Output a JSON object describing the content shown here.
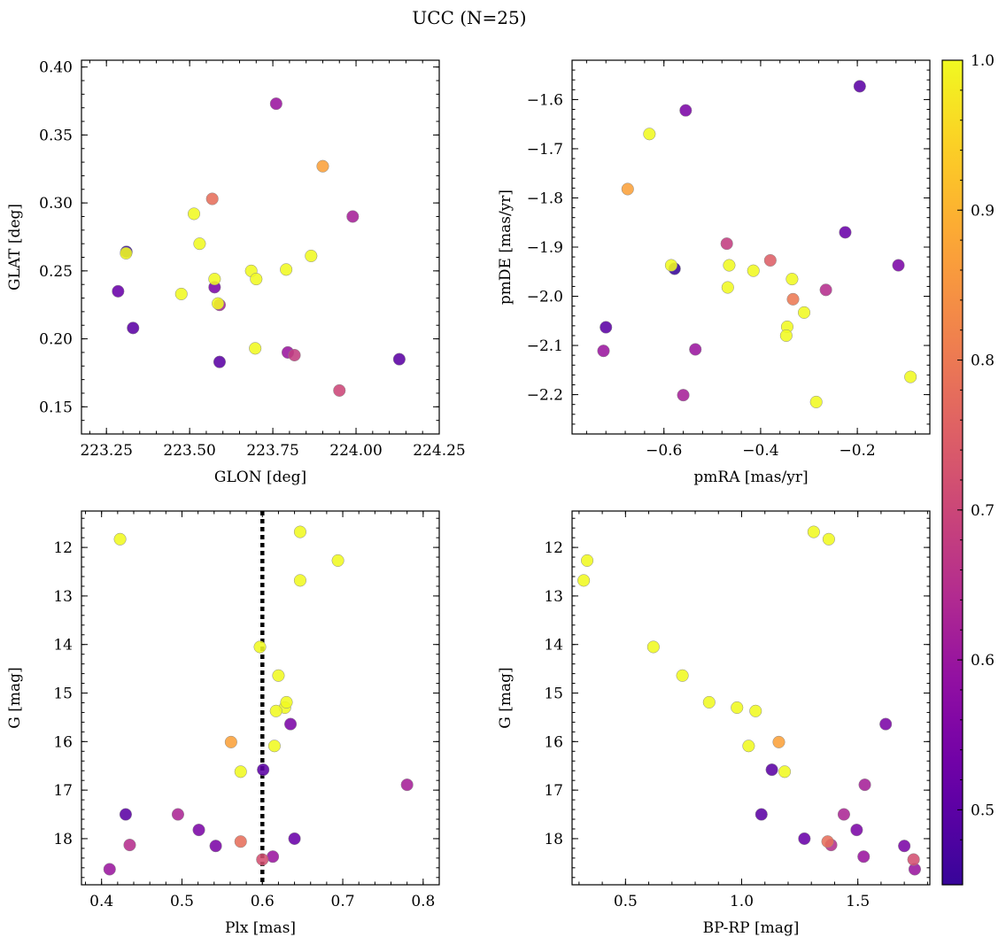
{
  "figure": {
    "suptitle": "UCC (N=25)"
  },
  "colorbar": {
    "min": 0.45,
    "max": 1.0,
    "colormap": "plasma",
    "ticks": [
      0.5,
      0.6,
      0.7,
      0.8,
      0.9,
      1.0
    ],
    "tick_labels": [
      "0.5",
      "0.6",
      "0.7",
      "0.8",
      "0.9",
      "1.0"
    ]
  },
  "chart_data": [
    {
      "type": "scatter",
      "id": "glon-glat",
      "xlabel": "GLON [deg]",
      "ylabel": "GLAT [deg]",
      "xlim": [
        223.175,
        224.25
      ],
      "ylim": [
        0.13,
        0.405
      ],
      "invert_y": false,
      "xticks": [
        223.25,
        223.5,
        223.75,
        224.0,
        224.25
      ],
      "xtick_labels": [
        "223.25",
        "223.50",
        "223.75",
        "224.00",
        "224.25"
      ],
      "yticks": [
        0.15,
        0.2,
        0.25,
        0.3,
        0.35,
        0.4
      ],
      "ytick_labels": [
        "0.15",
        "0.20",
        "0.25",
        "0.30",
        "0.35",
        "0.40"
      ],
      "points": [
        {
          "x": 223.31,
          "y": 0.264,
          "p": 0.45
        },
        {
          "x": 223.309,
          "y": 0.263,
          "p": 1.0
        },
        {
          "x": 223.285,
          "y": 0.235,
          "p": 0.52
        },
        {
          "x": 223.33,
          "y": 0.208,
          "p": 0.5
        },
        {
          "x": 223.475,
          "y": 0.233,
          "p": 1.0
        },
        {
          "x": 223.513,
          "y": 0.292,
          "p": 1.0
        },
        {
          "x": 223.53,
          "y": 0.27,
          "p": 1.0
        },
        {
          "x": 223.568,
          "y": 0.303,
          "p": 0.78
        },
        {
          "x": 223.575,
          "y": 0.244,
          "p": 1.0
        },
        {
          "x": 223.575,
          "y": 0.238,
          "p": 0.55
        },
        {
          "x": 223.585,
          "y": 0.226,
          "p": 1.0
        },
        {
          "x": 223.59,
          "y": 0.225,
          "p": 0.62
        },
        {
          "x": 223.59,
          "y": 0.183,
          "p": 0.5
        },
        {
          "x": 223.685,
          "y": 0.25,
          "p": 1.0
        },
        {
          "x": 223.7,
          "y": 0.244,
          "p": 1.0
        },
        {
          "x": 223.697,
          "y": 0.193,
          "p": 1.0
        },
        {
          "x": 223.76,
          "y": 0.373,
          "p": 0.6
        },
        {
          "x": 223.79,
          "y": 0.251,
          "p": 1.0
        },
        {
          "x": 223.795,
          "y": 0.19,
          "p": 0.6
        },
        {
          "x": 223.815,
          "y": 0.188,
          "p": 0.68
        },
        {
          "x": 223.865,
          "y": 0.261,
          "p": 1.0
        },
        {
          "x": 223.9,
          "y": 0.327,
          "p": 0.87
        },
        {
          "x": 223.95,
          "y": 0.162,
          "p": 0.7
        },
        {
          "x": 223.99,
          "y": 0.29,
          "p": 0.62
        },
        {
          "x": 224.13,
          "y": 0.185,
          "p": 0.5
        }
      ]
    },
    {
      "type": "scatter",
      "id": "pmra-pmde",
      "xlabel": "pmRA [mas/yr]",
      "ylabel": "pmDE [mas/yr]",
      "xlim": [
        -0.79,
        -0.05
      ],
      "ylim": [
        -2.28,
        -1.52
      ],
      "invert_y": false,
      "xticks": [
        -0.6,
        -0.4,
        -0.2
      ],
      "xtick_labels": [
        "−0.6",
        "−0.4",
        "−0.2"
      ],
      "yticks": [
        -2.2,
        -2.1,
        -2.0,
        -1.9,
        -1.8,
        -1.7,
        -1.6
      ],
      "ytick_labels": [
        "−2.2",
        "−2.1",
        "−2.0",
        "−1.9",
        "−1.8",
        "−1.7",
        "−1.6"
      ],
      "points": [
        {
          "x": -0.195,
          "y": -1.573,
          "p": 0.5
        },
        {
          "x": -0.555,
          "y": -1.622,
          "p": 0.55
        },
        {
          "x": -0.63,
          "y": -1.67,
          "p": 1.0
        },
        {
          "x": -0.675,
          "y": -1.782,
          "p": 0.87
        },
        {
          "x": -0.225,
          "y": -1.87,
          "p": 0.52
        },
        {
          "x": -0.47,
          "y": -1.893,
          "p": 0.68
        },
        {
          "x": -0.38,
          "y": -1.927,
          "p": 0.75
        },
        {
          "x": -0.585,
          "y": -1.937,
          "p": 1.0
        },
        {
          "x": -0.578,
          "y": -1.944,
          "p": 0.45
        },
        {
          "x": -0.465,
          "y": -1.937,
          "p": 1.0
        },
        {
          "x": -0.415,
          "y": -1.948,
          "p": 1.0
        },
        {
          "x": -0.115,
          "y": -1.937,
          "p": 0.55
        },
        {
          "x": -0.335,
          "y": -1.965,
          "p": 1.0
        },
        {
          "x": -0.468,
          "y": -1.982,
          "p": 1.0
        },
        {
          "x": -0.265,
          "y": -1.987,
          "p": 0.65
        },
        {
          "x": -0.333,
          "y": -2.006,
          "p": 0.8
        },
        {
          "x": -0.31,
          "y": -2.033,
          "p": 1.0
        },
        {
          "x": -0.72,
          "y": -2.063,
          "p": 0.5
        },
        {
          "x": -0.345,
          "y": -2.062,
          "p": 1.0
        },
        {
          "x": -0.347,
          "y": -2.08,
          "p": 1.0
        },
        {
          "x": -0.725,
          "y": -2.111,
          "p": 0.6
        },
        {
          "x": -0.535,
          "y": -2.108,
          "p": 0.6
        },
        {
          "x": -0.09,
          "y": -2.164,
          "p": 1.0
        },
        {
          "x": -0.56,
          "y": -2.201,
          "p": 0.62
        },
        {
          "x": -0.285,
          "y": -2.215,
          "p": 1.0
        }
      ]
    },
    {
      "type": "scatter",
      "id": "plx-g",
      "xlabel": "Plx [mas]",
      "ylabel": "G [mag]",
      "xlim": [
        0.375,
        0.82
      ],
      "ylim": [
        11.25,
        18.95
      ],
      "invert_y": true,
      "xticks": [
        0.4,
        0.5,
        0.6,
        0.7,
        0.8
      ],
      "xtick_labels": [
        "0.4",
        "0.5",
        "0.6",
        "0.7",
        "0.8"
      ],
      "yticks": [
        12,
        13,
        14,
        15,
        16,
        17,
        18
      ],
      "ytick_labels": [
        "12",
        "13",
        "14",
        "15",
        "16",
        "17",
        "18"
      ],
      "vline": {
        "x": 0.6
      },
      "points": [
        {
          "x": 0.647,
          "y": 11.68,
          "p": 1.0
        },
        {
          "x": 0.423,
          "y": 11.83,
          "p": 1.0
        },
        {
          "x": 0.694,
          "y": 12.27,
          "p": 1.0
        },
        {
          "x": 0.647,
          "y": 12.68,
          "p": 1.0
        },
        {
          "x": 0.597,
          "y": 14.05,
          "p": 1.0
        },
        {
          "x": 0.62,
          "y": 14.64,
          "p": 1.0
        },
        {
          "x": 0.628,
          "y": 15.3,
          "p": 1.0
        },
        {
          "x": 0.63,
          "y": 15.19,
          "p": 1.0
        },
        {
          "x": 0.617,
          "y": 15.37,
          "p": 1.0
        },
        {
          "x": 0.635,
          "y": 15.64,
          "p": 0.55
        },
        {
          "x": 0.561,
          "y": 16.01,
          "p": 0.87
        },
        {
          "x": 0.615,
          "y": 16.09,
          "p": 1.0
        },
        {
          "x": 0.601,
          "y": 16.58,
          "p": 0.5
        },
        {
          "x": 0.573,
          "y": 16.62,
          "p": 1.0
        },
        {
          "x": 0.78,
          "y": 16.89,
          "p": 0.62
        },
        {
          "x": 0.43,
          "y": 17.5,
          "p": 0.5
        },
        {
          "x": 0.495,
          "y": 17.5,
          "p": 0.63
        },
        {
          "x": 0.521,
          "y": 17.82,
          "p": 0.55
        },
        {
          "x": 0.64,
          "y": 18.0,
          "p": 0.52
        },
        {
          "x": 0.573,
          "y": 18.06,
          "p": 0.78
        },
        {
          "x": 0.435,
          "y": 18.13,
          "p": 0.65
        },
        {
          "x": 0.542,
          "y": 18.15,
          "p": 0.55
        },
        {
          "x": 0.613,
          "y": 18.37,
          "p": 0.6
        },
        {
          "x": 0.6,
          "y": 18.43,
          "p": 0.72
        },
        {
          "x": 0.41,
          "y": 18.63,
          "p": 0.6
        }
      ]
    },
    {
      "type": "scatter",
      "id": "bprp-g",
      "xlabel": "BP-RP [mag]",
      "ylabel": "G [mag]",
      "xlim": [
        0.27,
        1.81
      ],
      "ylim": [
        11.25,
        18.95
      ],
      "invert_y": true,
      "xticks": [
        0.5,
        1.0,
        1.5
      ],
      "xtick_labels": [
        "0.5",
        "1.0",
        "1.5"
      ],
      "yticks": [
        12,
        13,
        14,
        15,
        16,
        17,
        18
      ],
      "ytick_labels": [
        "12",
        "13",
        "14",
        "15",
        "16",
        "17",
        "18"
      ],
      "points": [
        {
          "x": 1.31,
          "y": 11.68,
          "p": 1.0
        },
        {
          "x": 1.375,
          "y": 11.83,
          "p": 1.0
        },
        {
          "x": 0.335,
          "y": 12.27,
          "p": 1.0
        },
        {
          "x": 0.32,
          "y": 12.68,
          "p": 1.0
        },
        {
          "x": 0.62,
          "y": 14.05,
          "p": 1.0
        },
        {
          "x": 0.745,
          "y": 14.64,
          "p": 1.0
        },
        {
          "x": 0.86,
          "y": 15.19,
          "p": 1.0
        },
        {
          "x": 0.98,
          "y": 15.3,
          "p": 1.0
        },
        {
          "x": 1.06,
          "y": 15.37,
          "p": 1.0
        },
        {
          "x": 1.62,
          "y": 15.64,
          "p": 0.55
        },
        {
          "x": 1.16,
          "y": 16.01,
          "p": 0.87
        },
        {
          "x": 1.03,
          "y": 16.09,
          "p": 1.0
        },
        {
          "x": 1.13,
          "y": 16.58,
          "p": 0.5
        },
        {
          "x": 1.185,
          "y": 16.62,
          "p": 1.0
        },
        {
          "x": 1.53,
          "y": 16.89,
          "p": 0.62
        },
        {
          "x": 1.085,
          "y": 17.5,
          "p": 0.5
        },
        {
          "x": 1.44,
          "y": 17.5,
          "p": 0.63
        },
        {
          "x": 1.495,
          "y": 17.82,
          "p": 0.55
        },
        {
          "x": 1.27,
          "y": 18.0,
          "p": 0.52
        },
        {
          "x": 1.37,
          "y": 18.06,
          "p": 0.78
        },
        {
          "x": 1.385,
          "y": 18.13,
          "p": 0.65
        },
        {
          "x": 1.7,
          "y": 18.15,
          "p": 0.55
        },
        {
          "x": 1.525,
          "y": 18.37,
          "p": 0.6
        },
        {
          "x": 1.74,
          "y": 18.43,
          "p": 0.72
        },
        {
          "x": 1.745,
          "y": 18.63,
          "p": 0.6
        }
      ]
    }
  ]
}
